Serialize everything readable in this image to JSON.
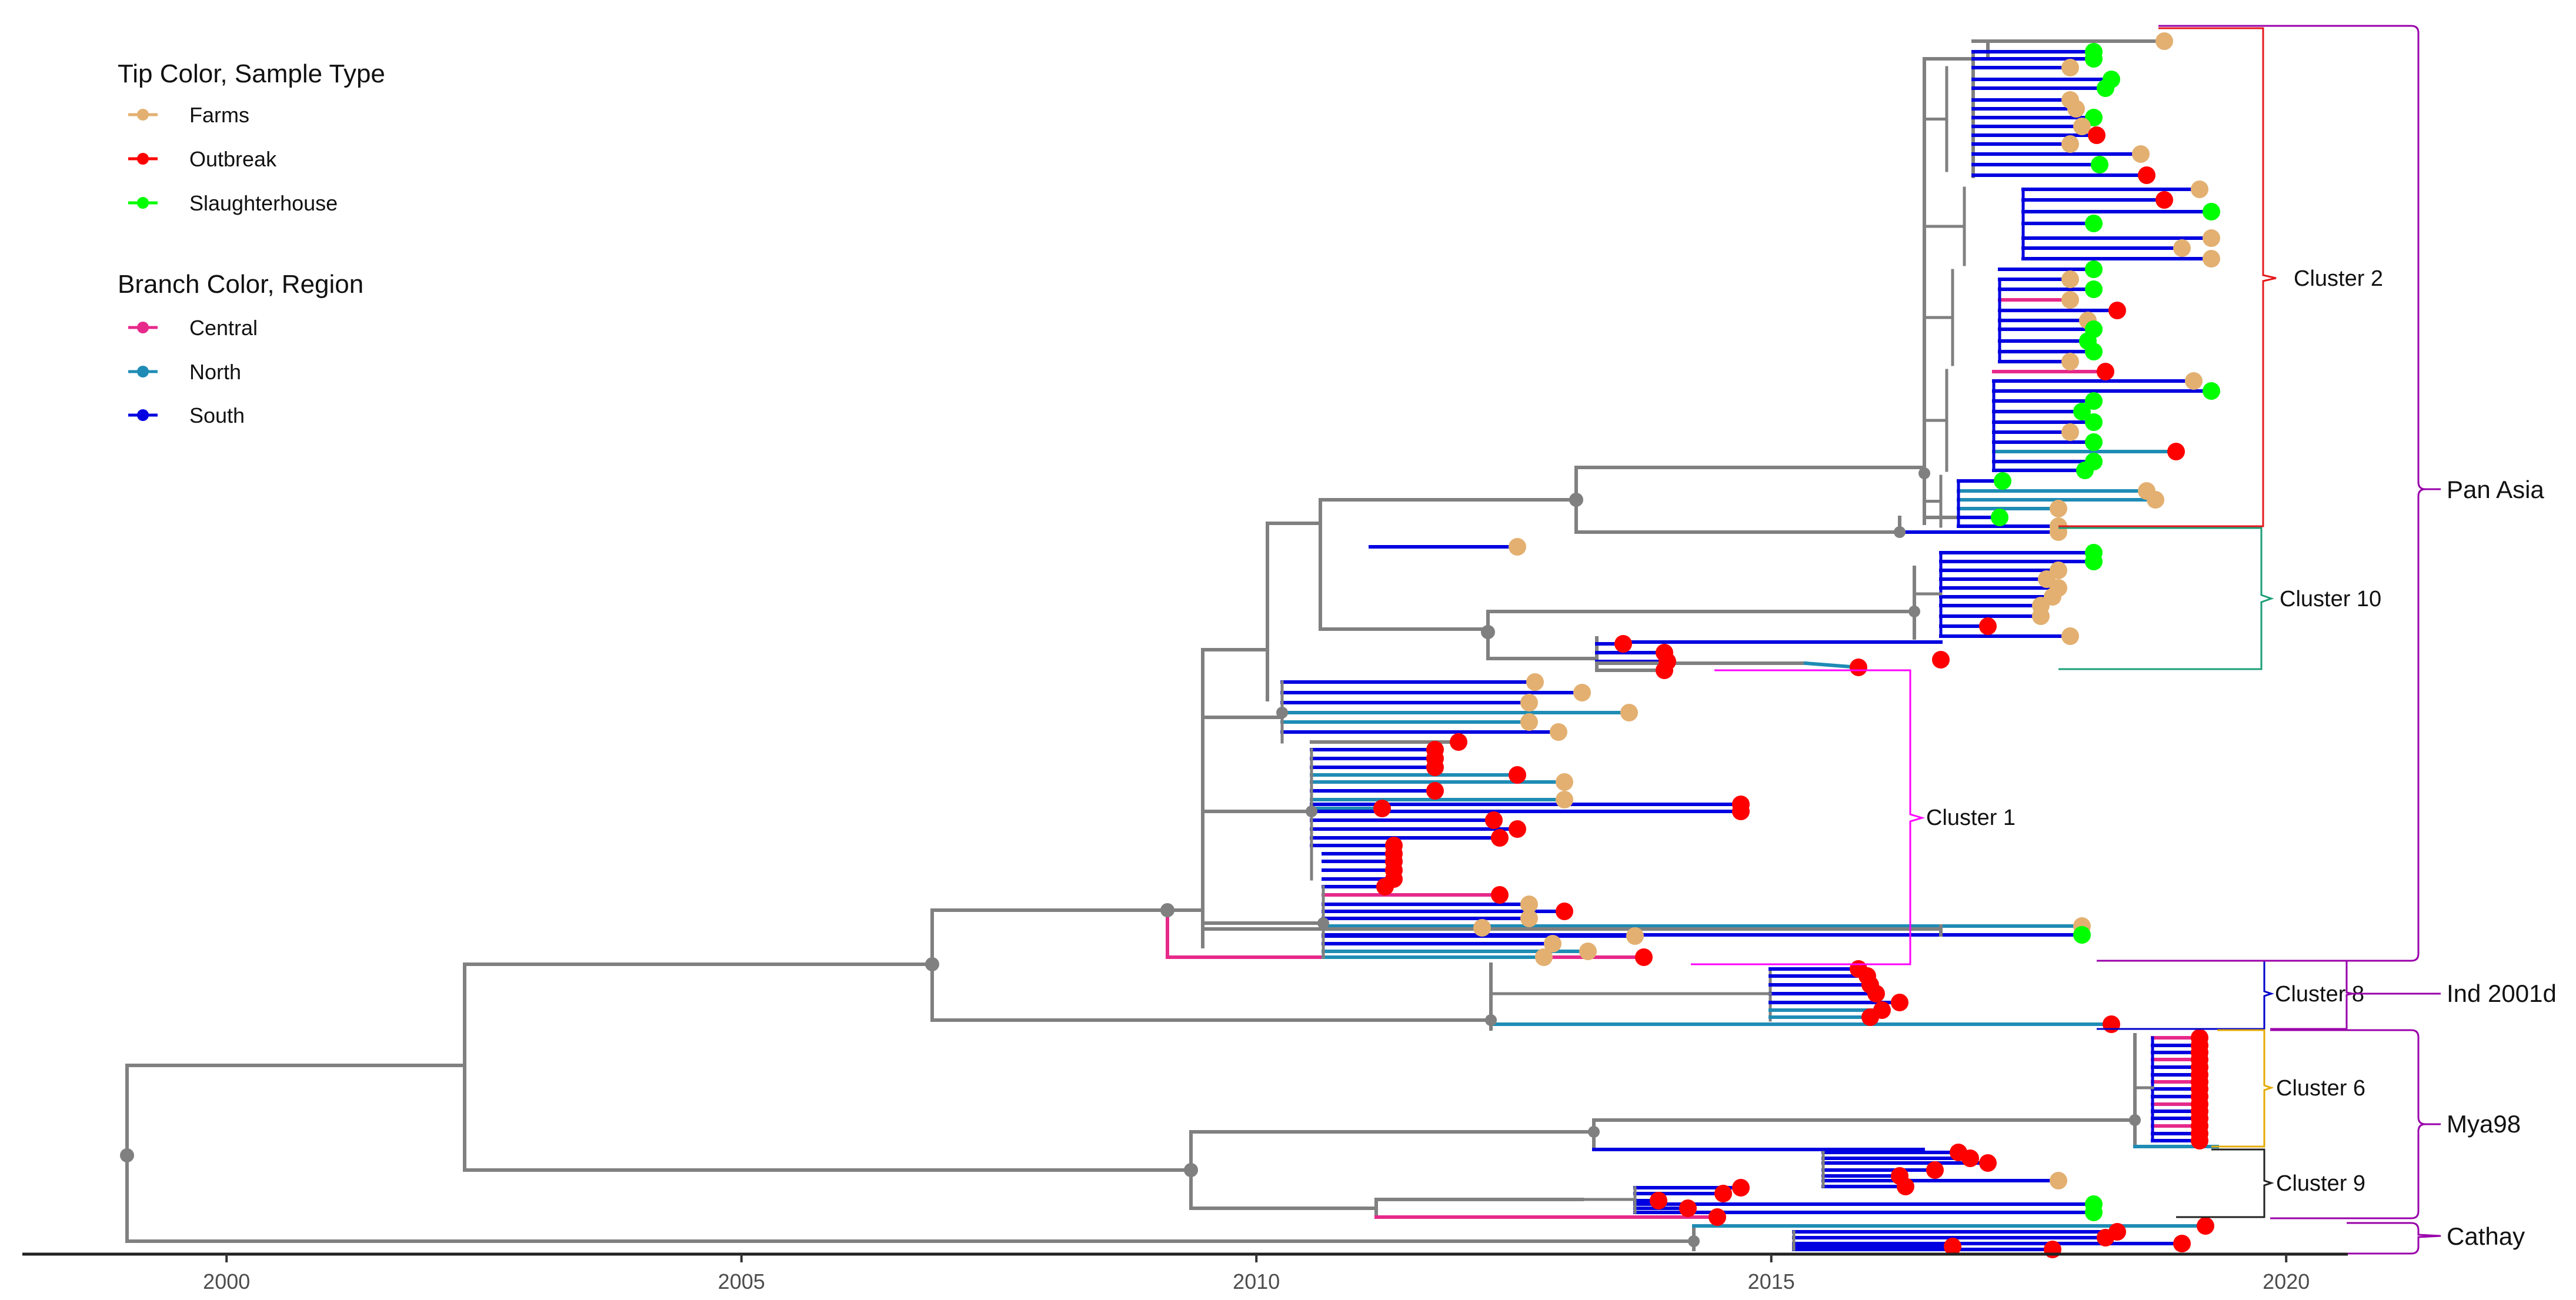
{
  "figure": {
    "type": "time-scaled phylogenetic tree",
    "x_axis": {
      "range": [
        1997.8,
        2020.5
      ],
      "ticks": [
        2000,
        2005,
        2010,
        2015,
        2020
      ],
      "tick_labels": [
        "2000",
        "2005",
        "2010",
        "2015",
        "2020"
      ]
    }
  },
  "legend": {
    "tip_title": "Tip Color, Sample Type",
    "tip_items": [
      {
        "label": "Farms",
        "color": "#E3B071"
      },
      {
        "label": "Outbreak",
        "color": "#FF0000"
      },
      {
        "label": "Slaughterhouse",
        "color": "#00FF00"
      }
    ],
    "branch_title": "Branch Color, Region",
    "branch_items": [
      {
        "label": "Central",
        "color": "#E7298A"
      },
      {
        "label": "North",
        "color": "#1F8CB5"
      },
      {
        "label": "South",
        "color": "#0000E0"
      }
    ]
  },
  "colors": {
    "backbone": "#808080",
    "node": "#808080"
  },
  "clades": [
    {
      "label": "Cluster 2",
      "color": "#E41A1C",
      "span_years": [
        2016.2,
        2018.5
      ]
    },
    {
      "label": "Cluster 10",
      "color": "#1B9E77",
      "span_years": [
        2016.2,
        2018.0
      ]
    },
    {
      "label": "Cluster 1",
      "color": "#FF00FF",
      "span_years": [
        2009.0,
        2014.6
      ]
    },
    {
      "label": "Cluster 8",
      "color": "#0000CC",
      "span_years": [
        2012.1,
        2017.7
      ]
    },
    {
      "label": "Cluster 6",
      "color": "#E6AB02",
      "span_years": [
        2018.4,
        2019.0
      ]
    },
    {
      "label": "Cluster 9",
      "color": "#222222",
      "span_years": [
        2013.1,
        2019.0
      ]
    }
  ],
  "groups": [
    {
      "label": "Pan Asia",
      "color": "#9900AA"
    },
    {
      "label": "Ind 2001d",
      "color": "#9900AA"
    },
    {
      "label": "Mya98",
      "color": "#9900AA"
    },
    {
      "label": "Cathay",
      "color": "#9900AA"
    }
  ]
}
